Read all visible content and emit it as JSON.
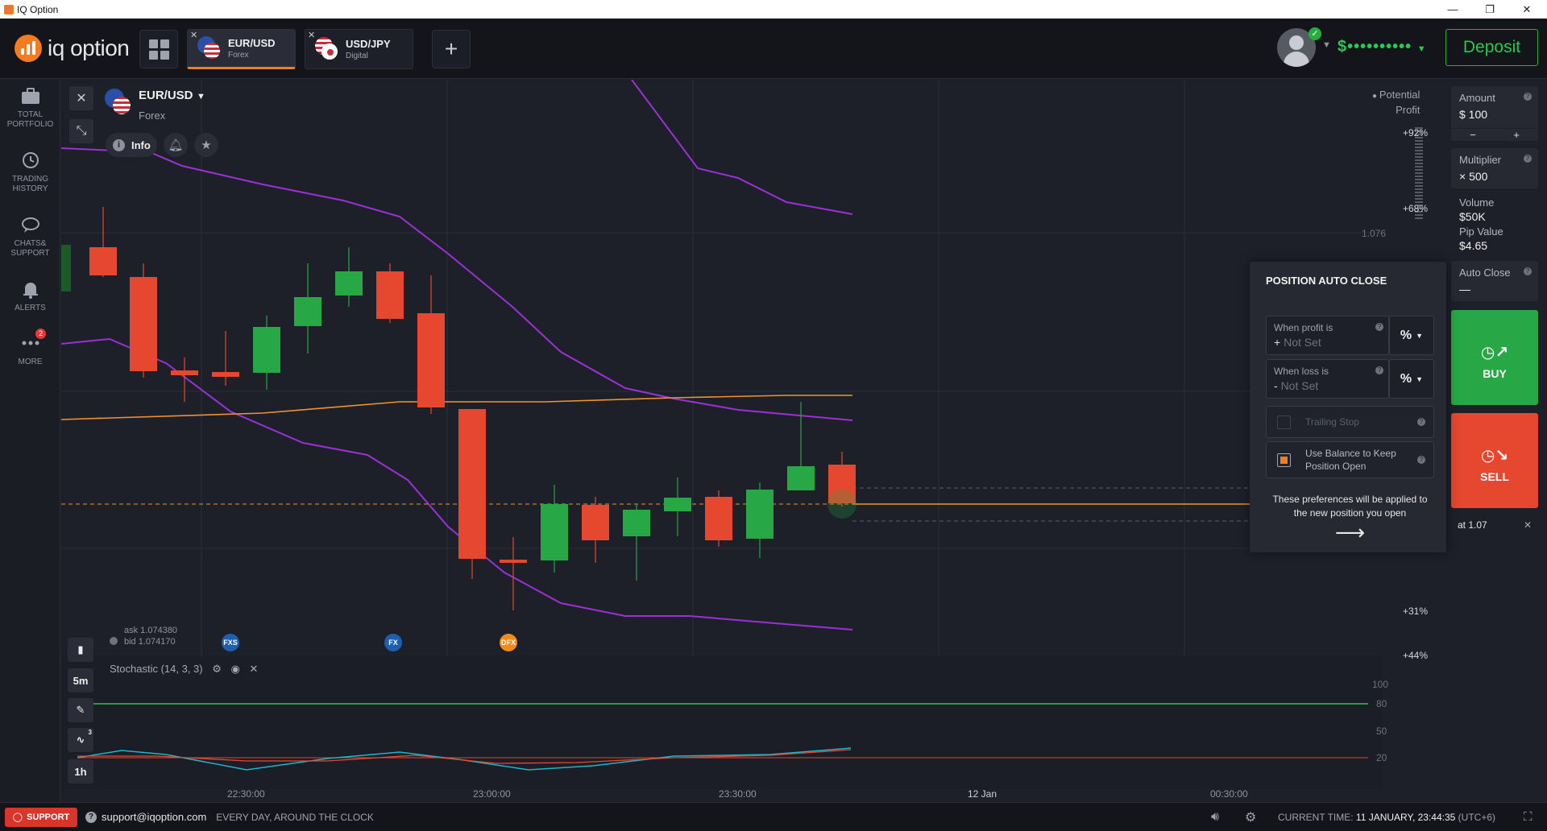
{
  "window": {
    "title": "IQ Option",
    "minimize": "—",
    "maximize": "❐",
    "close": "✕"
  },
  "header": {
    "logo_text": "iq option",
    "tabs": [
      {
        "name": "EUR/USD",
        "type": "Forex",
        "active": true,
        "close": "✕"
      },
      {
        "name": "USD/JPY",
        "type": "Digital",
        "active": false,
        "close": "✕"
      }
    ],
    "add_tab": "+",
    "balance": "$••••••••••",
    "deposit_label": "Deposit"
  },
  "sidebar": {
    "items": [
      {
        "label1": "TOTAL",
        "label2": "PORTFOLIO",
        "icon": "briefcase-icon"
      },
      {
        "label1": "TRADING",
        "label2": "HISTORY",
        "icon": "history-icon"
      },
      {
        "label1": "CHATS&",
        "label2": "SUPPORT",
        "icon": "chat-icon"
      },
      {
        "label1": "ALERTS",
        "label2": "",
        "icon": "bell-icon"
      },
      {
        "label1": "MORE",
        "label2": "",
        "icon": "more-icon",
        "badge": "2"
      }
    ]
  },
  "chart": {
    "asset_name": "EUR/USD",
    "asset_type": "Forex",
    "info_label": "Info",
    "potential_profit_label": [
      "Potential",
      "Profit"
    ],
    "profit_ticks": [
      "+92%",
      "+68%",
      "+31%",
      "+44%"
    ],
    "price_label": "1.076",
    "ask": "ask 1.074380",
    "bid": "bid 1.074170",
    "news_sources": [
      "FXS",
      "FX",
      "DFX"
    ],
    "timeframe": "5m",
    "candle_period": "1h",
    "indicator_count": "3",
    "indicator_label": "Stochastic (14, 3, 3)",
    "stoch_levels": [
      "100",
      "80",
      "50",
      "20"
    ],
    "time_axis": [
      "22:30:00",
      "23:00:00",
      "23:30:00",
      "12 Jan",
      "00:30:00"
    ]
  },
  "trade_panel": {
    "amount_label": "Amount",
    "amount_value": "$  100",
    "amount_minus": "−",
    "amount_plus": "+",
    "multiplier_label": "Multiplier",
    "multiplier_value": "× 500",
    "volume_label": "Volume",
    "volume_value": "$50K",
    "pip_label": "Pip Value",
    "pip_value": "$4.65",
    "auto_close_label": "Auto Close",
    "auto_close_value": "—",
    "buy_label": "BUY",
    "sell_label": "SELL",
    "pending_label": "at 1.07",
    "pending_close": "✕"
  },
  "auto_close": {
    "title": "POSITION AUTO CLOSE",
    "profit_label": "When profit is",
    "profit_sign": "+",
    "profit_value": "Not Set",
    "loss_label": "When loss is",
    "loss_sign": "-",
    "loss_value": "Not Set",
    "unit": "%",
    "trailing_stop": "Trailing Stop",
    "use_balance": [
      "Use Balance to Keep",
      "Position Open"
    ],
    "note": "These preferences will be applied to the new position you open",
    "arrow": "⟶"
  },
  "footer": {
    "support_label": "SUPPORT",
    "email": "support@iqoption.com",
    "hours": "EVERY DAY, AROUND THE CLOCK",
    "current_time_label": "CURRENT TIME:",
    "current_time_value": "11 JANUARY, 23:44:35",
    "timezone": "(UTC+6)"
  },
  "colors": {
    "accent": "#f47b20",
    "up": "#27a745",
    "down": "#e5472f",
    "ma": "#f0932b",
    "bollinger": "#9b30d6",
    "stoch_k": "#1fb5c8",
    "stoch_d": "#e5472f"
  }
}
